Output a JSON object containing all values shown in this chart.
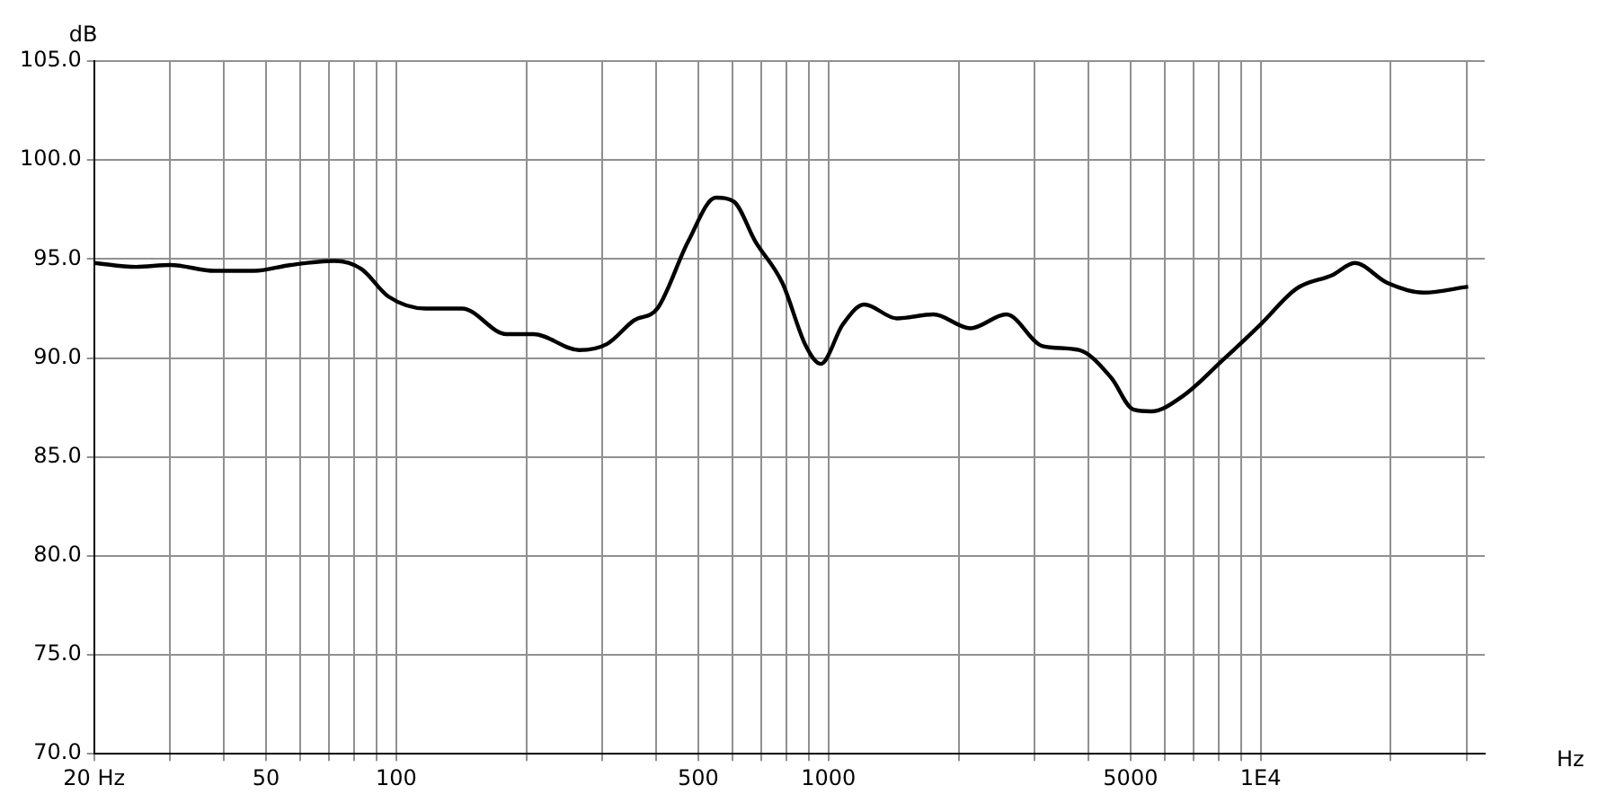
{
  "chart_data": {
    "type": "line",
    "xlabel": "Hz",
    "ylabel": "dB",
    "log": "x",
    "grid": true,
    "legend": false,
    "marker": "none",
    "line_style": "solid",
    "xlim": [
      20,
      33000
    ],
    "ylim": [
      70,
      105
    ],
    "xticks": [
      {
        "value": 20,
        "label": "20 Hz"
      },
      {
        "value": 30,
        "label": null
      },
      {
        "value": 40,
        "label": null
      },
      50,
      {
        "value": 60,
        "label": null
      },
      {
        "value": 70,
        "label": null
      },
      {
        "value": 80,
        "label": null
      },
      {
        "value": 90,
        "label": null
      },
      100,
      {
        "value": 200,
        "label": null
      },
      {
        "value": 300,
        "label": null
      },
      {
        "value": 400,
        "label": null
      },
      500,
      {
        "value": 600,
        "label": null
      },
      {
        "value": 700,
        "label": null
      },
      {
        "value": 800,
        "label": null
      },
      {
        "value": 900,
        "label": null
      },
      1000,
      {
        "value": 2000,
        "label": null
      },
      {
        "value": 3000,
        "label": null
      },
      {
        "value": 4000,
        "label": null
      },
      5000,
      {
        "value": 6000,
        "label": null
      },
      {
        "value": 7000,
        "label": null
      },
      {
        "value": 8000,
        "label": null
      },
      {
        "value": 9000,
        "label": null
      },
      {
        "value": 10000,
        "label": "1E4"
      },
      {
        "value": 20000,
        "label": null
      },
      {
        "value": 30000,
        "label": null
      }
    ],
    "yticks": [
      {
        "value": 70,
        "label": "70.0"
      },
      {
        "value": 75,
        "label": "75.0"
      },
      {
        "value": 80,
        "label": "80.0"
      },
      {
        "value": 85,
        "label": "85.0"
      },
      {
        "value": 90,
        "label": "90.0"
      },
      {
        "value": 95,
        "label": "95.0"
      },
      {
        "value": 100,
        "label": "100.0"
      },
      {
        "value": 105,
        "label": "105.0"
      }
    ],
    "x": [
      20,
      25,
      30,
      38,
      47,
      57,
      72,
      83,
      96,
      117,
      142,
      180,
      208,
      265,
      307,
      355,
      402,
      474,
      549,
      604,
      677,
      782,
      887,
      960,
      1080,
      1210,
      1440,
      1750,
      2130,
      2580,
      3130,
      3800,
      4510,
      5070,
      5580,
      6630,
      8180,
      10000,
      12100,
      14700,
      16500,
      19600,
      23800,
      30200
    ],
    "series": [
      {
        "color": "#000000",
        "values": [
          94.8,
          94.6,
          94.7,
          94.4,
          94.4,
          94.7,
          94.9,
          94.5,
          93.1,
          92.5,
          92.5,
          91.2,
          91.2,
          90.4,
          90.7,
          91.9,
          92.5,
          95.9,
          98.1,
          97.9,
          95.9,
          93.8,
          90.6,
          89.7,
          91.7,
          92.7,
          92.0,
          92.2,
          91.5,
          92.2,
          90.6,
          90.4,
          89.0,
          87.4,
          87.3,
          88.1,
          89.9,
          91.7,
          93.5,
          94.2,
          94.8,
          93.8,
          93.3,
          93.6
        ]
      }
    ]
  }
}
